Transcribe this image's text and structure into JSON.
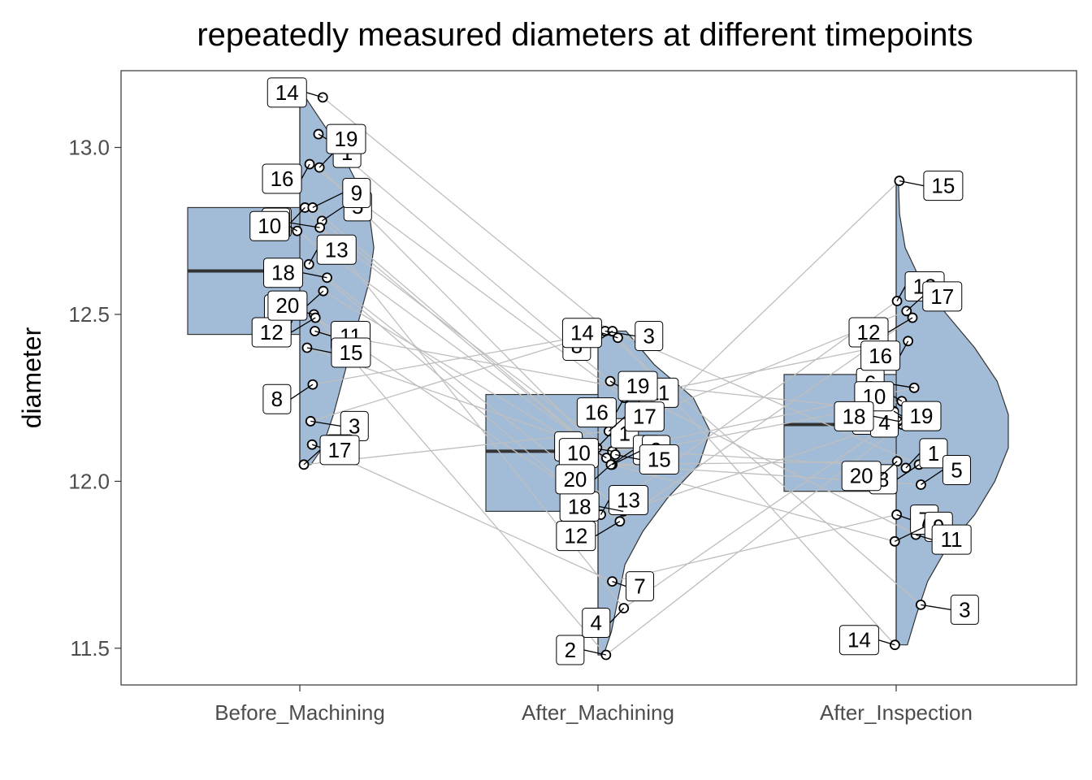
{
  "chart_data": {
    "type": "raincloud",
    "title": "repeatedly measured diameters at different timepoints",
    "xlabel": "",
    "ylabel": "diameter",
    "categories": [
      "Before_Machining",
      "After_Machining",
      "After_Inspection"
    ],
    "ylim": [
      11.39,
      13.23
    ],
    "yticks": [
      11.5,
      12.0,
      12.5,
      13.0
    ],
    "ytick_labels": [
      "11.5",
      "12.0",
      "12.5",
      "13.0"
    ],
    "grid": false,
    "legend": "none",
    "colors": {
      "fill": "#a2bcd8",
      "outline": "#333333",
      "connector": "#bebebe",
      "point_fill": "#ffffff",
      "point_stroke": "#000000",
      "label_border": "#000000"
    },
    "boxplots": [
      {
        "category": "Before_Machining",
        "q1": 12.44,
        "median": 12.63,
        "q3": 12.82,
        "whisker_min": 12.05,
        "whisker_max": 13.15
      },
      {
        "category": "After_Machining",
        "q1": 11.91,
        "median": 12.09,
        "q3": 12.26,
        "whisker_min": 11.48,
        "whisker_max": 12.45
      },
      {
        "category": "After_Inspection",
        "q1": 11.97,
        "median": 12.17,
        "q3": 12.32,
        "whisker_min": 11.51,
        "whisker_max": 12.9
      }
    ],
    "density": [
      {
        "category": "Before_Machining",
        "profile": [
          [
            12.05,
            0.1
          ],
          [
            12.1,
            0.2
          ],
          [
            12.2,
            0.3
          ],
          [
            12.3,
            0.38
          ],
          [
            12.4,
            0.46
          ],
          [
            12.5,
            0.54
          ],
          [
            12.6,
            0.62
          ],
          [
            12.7,
            0.66
          ],
          [
            12.8,
            0.62
          ],
          [
            12.9,
            0.5
          ],
          [
            13.0,
            0.35
          ],
          [
            13.1,
            0.15
          ],
          [
            13.15,
            0.05
          ]
        ]
      },
      {
        "category": "After_Machining",
        "profile": [
          [
            11.48,
            0.05
          ],
          [
            11.55,
            0.12
          ],
          [
            11.65,
            0.18
          ],
          [
            11.75,
            0.24
          ],
          [
            11.85,
            0.4
          ],
          [
            11.95,
            0.62
          ],
          [
            12.05,
            0.9
          ],
          [
            12.15,
            1.0
          ],
          [
            12.25,
            0.85
          ],
          [
            12.35,
            0.5
          ],
          [
            12.45,
            0.25
          ]
        ]
      },
      {
        "category": "After_Inspection",
        "profile": [
          [
            11.51,
            0.1
          ],
          [
            11.6,
            0.18
          ],
          [
            11.7,
            0.28
          ],
          [
            11.8,
            0.45
          ],
          [
            11.9,
            0.7
          ],
          [
            12.0,
            0.88
          ],
          [
            12.1,
            1.0
          ],
          [
            12.2,
            1.0
          ],
          [
            12.3,
            0.9
          ],
          [
            12.4,
            0.7
          ],
          [
            12.5,
            0.45
          ],
          [
            12.6,
            0.22
          ],
          [
            12.7,
            0.08
          ],
          [
            12.8,
            0.03
          ],
          [
            12.9,
            0.02
          ]
        ]
      }
    ],
    "subjects": [
      {
        "id": "1",
        "values": [
          12.94,
          12.1,
          12.04
        ]
      },
      {
        "id": "2",
        "values": [
          12.5,
          11.48,
          12.17
        ]
      },
      {
        "id": "3",
        "values": [
          12.18,
          12.45,
          11.63
        ]
      },
      {
        "id": "4",
        "values": [
          12.82,
          11.62,
          12.22
        ]
      },
      {
        "id": "5",
        "values": [
          12.78,
          12.05,
          11.99
        ]
      },
      {
        "id": "6",
        "values": [
          12.76,
          12.09,
          12.28
        ]
      },
      {
        "id": "7",
        "values": [
          12.11,
          11.7,
          11.9
        ]
      },
      {
        "id": "8",
        "values": [
          12.29,
          12.45,
          12.05
        ]
      },
      {
        "id": "9",
        "values": [
          12.82,
          12.05,
          11.82
        ]
      },
      {
        "id": "10",
        "values": [
          12.75,
          12.07,
          12.24
        ]
      },
      {
        "id": "11",
        "values": [
          12.45,
          12.28,
          11.84
        ]
      },
      {
        "id": "12",
        "values": [
          12.49,
          11.88,
          12.49
        ]
      },
      {
        "id": "13",
        "values": [
          12.65,
          11.9,
          12.54
        ]
      },
      {
        "id": "14",
        "values": [
          13.15,
          12.43,
          11.51
        ]
      },
      {
        "id": "15",
        "values": [
          12.4,
          12.08,
          12.9
        ]
      },
      {
        "id": "16",
        "values": [
          12.95,
          12.25,
          12.42
        ]
      },
      {
        "id": "17",
        "values": [
          12.05,
          12.15,
          12.51
        ]
      },
      {
        "id": "18",
        "values": [
          12.61,
          11.91,
          12.18
        ]
      },
      {
        "id": "19",
        "values": [
          13.04,
          12.3,
          12.21
        ]
      },
      {
        "id": "20",
        "values": [
          12.57,
          12.05,
          12.06
        ]
      }
    ]
  }
}
